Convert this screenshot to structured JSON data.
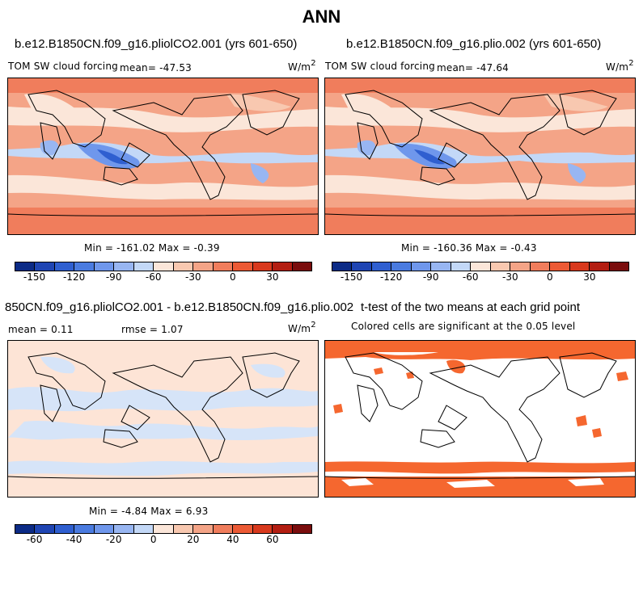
{
  "figure_title": "ANN",
  "panels": {
    "top_left": {
      "title": "b.e12.B1850CN.f09_g16.pliolCO2.001 (yrs 601-650)",
      "variable": "TOM SW cloud forcing",
      "mean": "mean= -47.53",
      "units": "W/m",
      "units_sup": "2",
      "minmax": "Min = -161.02 Max =  -0.39"
    },
    "top_right": {
      "title": "b.e12.B1850CN.f09_g16.plio.002 (yrs 601-650)",
      "variable": "TOM SW cloud forcing",
      "mean": "mean= -47.64",
      "units": "W/m",
      "units_sup": "2",
      "minmax": "Min = -160.36 Max =  -0.43"
    },
    "bottom_left": {
      "title": "850CN.f09_g16.pliolCO2.001 - b.e12.B1850CN.f09_g16.plio.002",
      "mean": "mean =   0.11",
      "rmse": "rmse =   1.07",
      "units": "W/m",
      "units_sup": "2",
      "minmax": "Min =  -4.84 Max =   6.93"
    },
    "bottom_right": {
      "title": "t-test of the two means at each grid point",
      "subtitle": "Colored cells are significant at the 0.05 level"
    }
  },
  "colorbars": {
    "field": {
      "colors": [
        "#0c2b86",
        "#1f45b3",
        "#2f5fd0",
        "#4a7be0",
        "#6f97ec",
        "#98b6f2",
        "#c3d8f7",
        "#fbe6d9",
        "#f8c8b0",
        "#f4a487",
        "#f07d5c",
        "#ec5a35",
        "#d8391d",
        "#b31e12",
        "#7a0d0d"
      ],
      "ticks": [
        "-150",
        "-120",
        "-90",
        "-60",
        "-30",
        "0",
        "30"
      ]
    },
    "diff": {
      "colors": [
        "#0c2b86",
        "#1f45b3",
        "#2f5fd0",
        "#4a7be0",
        "#6f97ec",
        "#98b6f2",
        "#c3d8f7",
        "#fbe6d9",
        "#f8c8b0",
        "#f4a487",
        "#f07d5c",
        "#ec5a35",
        "#d8391d",
        "#b31e12",
        "#7a0d0d"
      ],
      "ticks": [
        "-60",
        "-40",
        "-20",
        "0",
        "20",
        "40",
        "60"
      ]
    }
  },
  "palette": {
    "strong_neg": "#fa6a3c",
    "weak_neg": "#fbd6c4",
    "positive": "#c8dbf6",
    "strong_pos": "#5a84e6",
    "sig": "#f5672f",
    "pale": "#fde4d6",
    "pale_blue": "#d6e4f8"
  }
}
